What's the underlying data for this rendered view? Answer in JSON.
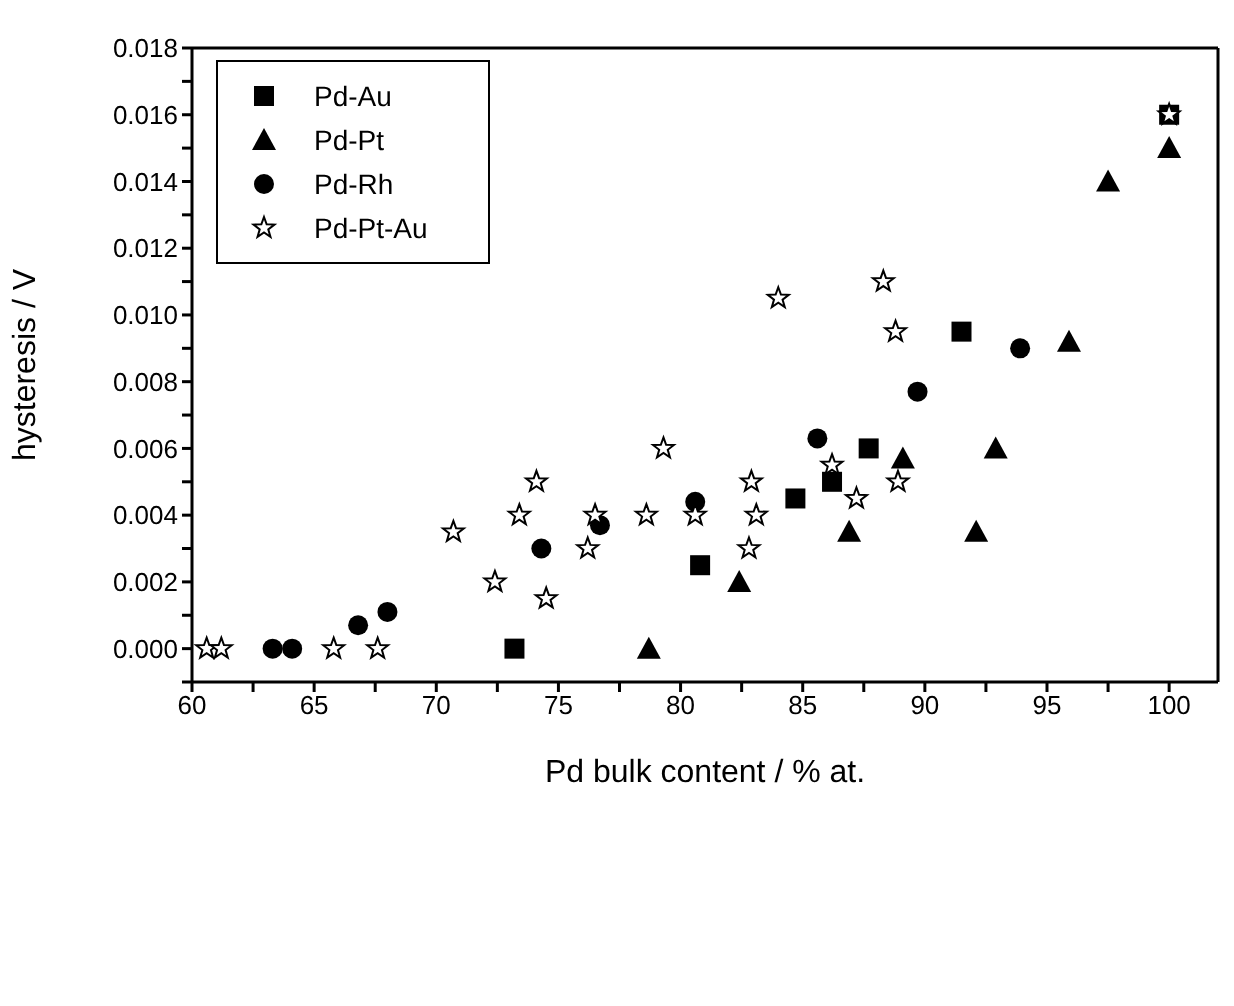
{
  "chart_data": {
    "type": "scatter",
    "xlabel": "Pd bulk content / % at.",
    "ylabel": "hysteresis / V",
    "xlim": [
      60,
      102
    ],
    "xticks": [
      60,
      {
        "value": 62.5,
        "label": null
      },
      65,
      {
        "value": 67.5,
        "label": null
      },
      70,
      {
        "value": 72.5,
        "label": null
      },
      75,
      {
        "value": 77.5,
        "label": null
      },
      80,
      {
        "value": 82.5,
        "label": null
      },
      85,
      {
        "value": 87.5,
        "label": null
      },
      90,
      {
        "value": 92.5,
        "label": null
      },
      95,
      {
        "value": 97.5,
        "label": null
      },
      100
    ],
    "ylim": [
      -0.001,
      0.018
    ],
    "yticks": [
      {
        "value": -0.001,
        "label": null
      },
      {
        "value": 0,
        "label": "0.000"
      },
      {
        "value": 0.001,
        "label": null
      },
      {
        "value": 0.002,
        "label": "0.002"
      },
      {
        "value": 0.003,
        "label": null
      },
      {
        "value": 0.004,
        "label": "0.004"
      },
      {
        "value": 0.005,
        "label": null
      },
      {
        "value": 0.006,
        "label": "0.006"
      },
      {
        "value": 0.007,
        "label": null
      },
      {
        "value": 0.008,
        "label": "0.008"
      },
      {
        "value": 0.009,
        "label": null
      },
      {
        "value": 0.01,
        "label": "0.010"
      },
      {
        "value": 0.011,
        "label": null
      },
      {
        "value": 0.012,
        "label": "0.012"
      },
      {
        "value": 0.013,
        "label": null
      },
      {
        "value": 0.014,
        "label": "0.014"
      },
      {
        "value": 0.015,
        "label": null
      },
      {
        "value": 0.016,
        "label": "0.016"
      },
      {
        "value": 0.017,
        "label": null
      },
      {
        "value": 0.018,
        "label": "0.018"
      }
    ],
    "grid": false,
    "legend": "top left",
    "series": [
      {
        "name": "Pd-Au",
        "color": "#000000",
        "marker": "square",
        "x": [
          73.2,
          80.8,
          84.7,
          86.2,
          87.7,
          91.5,
          100
        ],
        "values": [
          0,
          0.0025,
          0.0045,
          0.005,
          0.006,
          0.0095,
          0.016
        ]
      },
      {
        "name": "Pd-Pt",
        "color": "#000000",
        "marker": "triangle",
        "x": [
          78.7,
          82.4,
          86.9,
          89.1,
          92.1,
          92.9,
          95.9,
          97.5,
          100
        ],
        "values": [
          0,
          0.002,
          0.0035,
          0.0057,
          0.0035,
          0.006,
          0.0092,
          0.014,
          0.015
        ]
      },
      {
        "name": "Pd-Rh",
        "color": "#000000",
        "marker": "circle",
        "x": [
          63.3,
          64.1,
          66.8,
          68.0,
          74.3,
          76.7,
          80.6,
          85.6,
          89.7,
          93.9
        ],
        "values": [
          0,
          0,
          0.0007,
          0.0011,
          0.003,
          0.0037,
          0.0044,
          0.0063,
          0.0077,
          0.009
        ]
      },
      {
        "name": "Pd-Pt-Au",
        "color": "#000000",
        "marker": "star",
        "x": [
          60.6,
          61.2,
          65.8,
          67.6,
          70.7,
          72.4,
          73.4,
          74.1,
          74.5,
          76.2,
          76.5,
          78.6,
          79.3,
          80.6,
          82.8,
          82.9,
          83.1,
          84.0,
          86.2,
          87.2,
          88.3,
          88.8,
          88.9,
          100
        ],
        "values": [
          0,
          0,
          0,
          0,
          0.0035,
          0.002,
          0.004,
          0.005,
          0.0015,
          0.003,
          0.004,
          0.004,
          0.006,
          0.004,
          0.003,
          0.005,
          0.004,
          0.0105,
          0.0055,
          0.0045,
          0.011,
          0.0095,
          0.005,
          0.016
        ]
      }
    ]
  }
}
